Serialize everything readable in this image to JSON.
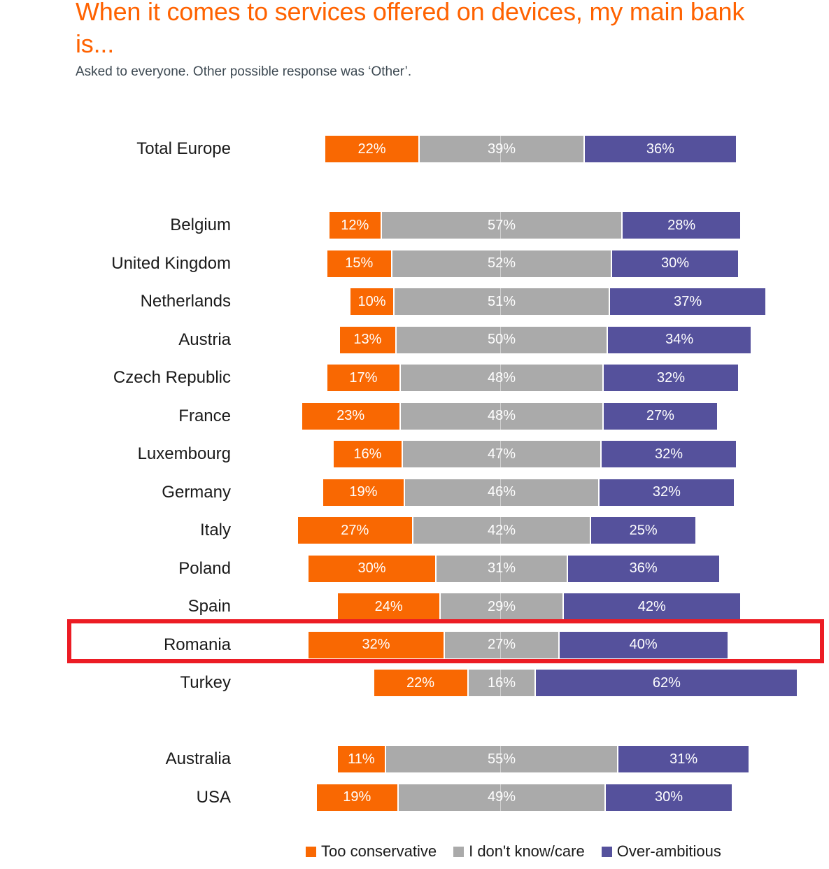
{
  "title": "When it comes to services offered on devices, my main bank is...",
  "subtitle": "Asked to everyone. Other possible response was ‘Other’.",
  "colors": {
    "title_orange": "#FF6200",
    "highlight_box_red": "#EC1C24",
    "label_text": "#1A1A1A",
    "bar_value_text": "#FFFFFF"
  },
  "legend": {
    "items": [
      {
        "label": "Too conservative",
        "color": "#F96802"
      },
      {
        "label": "I don't know/care",
        "color": "#AAAAAA"
      },
      {
        "label": "Over-ambitious",
        "color": "#55519C"
      }
    ]
  },
  "chart_data": {
    "type": "bar",
    "orientation": "horizontal",
    "stacked": true,
    "unit": "%",
    "title": "When it comes to services offered on devices, my main bank is...",
    "categories": [
      "Total Europe",
      "Belgium",
      "United Kingdom",
      "Netherlands",
      "Austria",
      "Czech Republic",
      "France",
      "Luxembourg",
      "Germany",
      "Italy",
      "Poland",
      "Spain",
      "Romania",
      "Turkey",
      "Australia",
      "USA"
    ],
    "series": [
      {
        "name": "Too conservative",
        "color": "#F96802",
        "values": [
          22,
          12,
          15,
          10,
          13,
          17,
          23,
          16,
          19,
          27,
          30,
          24,
          32,
          22,
          11,
          19
        ]
      },
      {
        "name": "I don't know/care",
        "color": "#AAAAAA",
        "values": [
          39,
          57,
          52,
          51,
          50,
          48,
          48,
          47,
          46,
          42,
          31,
          29,
          27,
          16,
          55,
          49
        ]
      },
      {
        "name": "Over-ambitious",
        "color": "#55519C",
        "values": [
          36,
          28,
          30,
          37,
          34,
          32,
          27,
          32,
          32,
          25,
          36,
          42,
          40,
          62,
          31,
          30
        ]
      }
    ],
    "layout": {
      "middle_series_centered": true,
      "gaps_after": [
        "Total Europe",
        "Turkey"
      ],
      "highlighted_category": "Romania",
      "legend_position": "bottom",
      "grid": false,
      "value_labels": "inside-white"
    }
  }
}
